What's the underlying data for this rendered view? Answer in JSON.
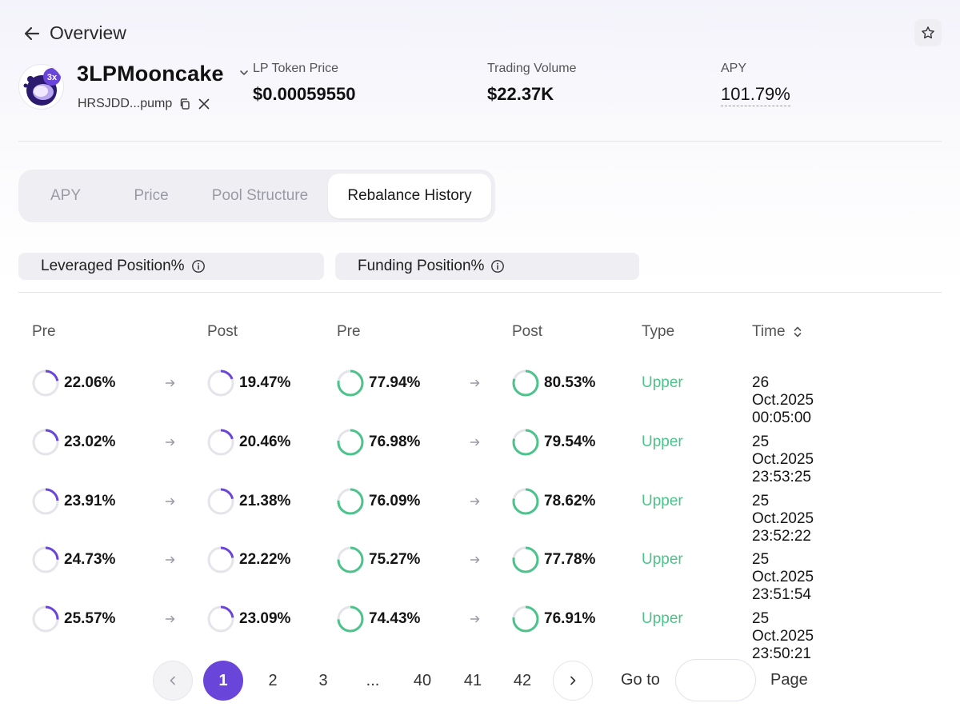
{
  "header": {
    "back_label": "Overview",
    "token_name": "3LPMooncake",
    "token_badge": "3x",
    "address": "HRSJDD...pump",
    "stats": [
      {
        "label": "LP Token Price",
        "value": "$0.00059550"
      },
      {
        "label": "Trading Volume",
        "value": "$22.37K"
      },
      {
        "label": "APY",
        "value": "101.79%"
      }
    ],
    "icons": {
      "back": "arrow-left-icon",
      "star": "star-icon",
      "copy": "copy-icon",
      "x": "x-logo-icon",
      "chevron": "chevron-down-icon"
    }
  },
  "tabs": [
    {
      "label": "APY",
      "active": false
    },
    {
      "label": "Price",
      "active": false
    },
    {
      "label": "Pool Structure",
      "active": false
    },
    {
      "label": "Rebalance History",
      "active": true
    }
  ],
  "sections": {
    "leveraged": "Leveraged Position%",
    "funding": "Funding Position%"
  },
  "table": {
    "headers": {
      "lev_pre": "Pre",
      "lev_post": "Post",
      "fund_pre": "Pre",
      "fund_post": "Post",
      "type": "Type",
      "time": "Time"
    },
    "rows": [
      {
        "lev_pre": "22.06%",
        "lev_post": "19.47%",
        "fund_pre": "77.94%",
        "fund_post": "80.53%",
        "type": "Upper",
        "time": "26 Oct.2025 00:05:00"
      },
      {
        "lev_pre": "23.02%",
        "lev_post": "20.46%",
        "fund_pre": "76.98%",
        "fund_post": "79.54%",
        "type": "Upper",
        "time": "25 Oct.2025 23:53:25"
      },
      {
        "lev_pre": "23.91%",
        "lev_post": "21.38%",
        "fund_pre": "76.09%",
        "fund_post": "78.62%",
        "type": "Upper",
        "time": "25 Oct.2025 23:52:22"
      },
      {
        "lev_pre": "24.73%",
        "lev_post": "22.22%",
        "fund_pre": "75.27%",
        "fund_post": "77.78%",
        "type": "Upper",
        "time": "25 Oct.2025 23:51:54"
      },
      {
        "lev_pre": "25.57%",
        "lev_post": "23.09%",
        "fund_pre": "74.43%",
        "fund_post": "76.91%",
        "type": "Upper",
        "time": "25 Oct.2025 23:50:21"
      }
    ]
  },
  "pagination": {
    "pages": [
      "1",
      "2",
      "3",
      "...",
      "40",
      "41",
      "42"
    ],
    "current": "1",
    "goto_label": "Go to",
    "goto_value": "",
    "page_label": "Page"
  },
  "colors": {
    "leveraged": "#6a45d9",
    "funding": "#4cc38a",
    "track": "#e4e4ea",
    "accent": "#6a45d9",
    "upper": "#4cc38a"
  }
}
